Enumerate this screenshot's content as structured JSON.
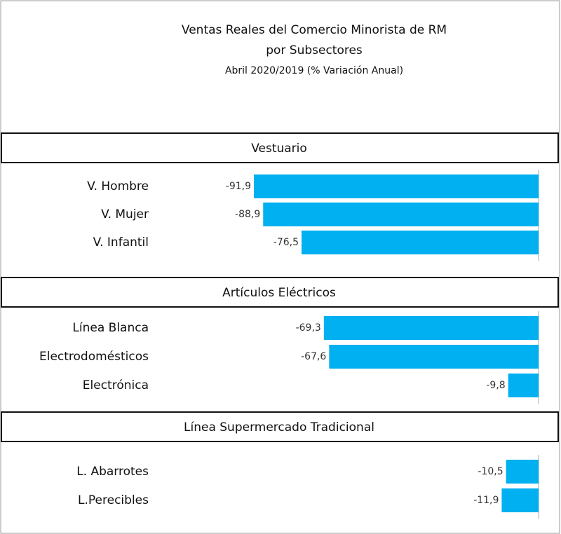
{
  "chart_data": {
    "type": "bar",
    "orientation": "horizontal",
    "color": "#00b0f0",
    "title": "Ventas Reales del Comercio Minorista de RM",
    "title_line2": "por Subsectores",
    "subtitle": "Abril 2020/2019 (% Variación Anual)",
    "groups": [
      {
        "name": "Vestuario",
        "categories": [
          "V. Hombre",
          "V. Mujer",
          "V. Infantil"
        ],
        "values": [
          -91.9,
          -88.9,
          -76.5
        ],
        "value_labels": [
          "-91,9",
          "-88,9",
          "-76,5"
        ]
      },
      {
        "name": "Artículos Eléctricos",
        "categories": [
          "Línea Blanca",
          "Electrodomésticos",
          "Electrónica"
        ],
        "values": [
          -69.3,
          -67.6,
          -9.8
        ],
        "value_labels": [
          "-69,3",
          "-67,6",
          "-9,8"
        ]
      },
      {
        "name": "Línea Supermercado Tradicional",
        "categories": [
          "L. Abarrotes",
          "L.Perecibles"
        ],
        "values": [
          -10.5,
          -11.9
        ],
        "value_labels": [
          "-10,5",
          "-11,9"
        ]
      }
    ]
  }
}
